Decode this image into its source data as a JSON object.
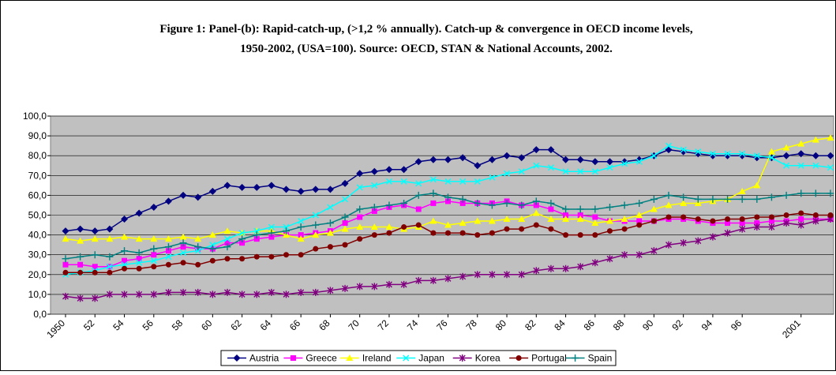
{
  "chart_data": {
    "type": "line",
    "title": [
      "Figure 1: Panel-(b): Rapid-catch-up, (>1,2 % annually). Catch-up & convergence in OECD income levels,",
      "1950-2002, (USA=100). Source: OECD, STAN & National Accounts, 2002."
    ],
    "categories": [
      "1950",
      null,
      "52",
      null,
      "54",
      null,
      "56",
      null,
      "58",
      null,
      "60",
      null,
      "62",
      null,
      "64",
      null,
      "66",
      null,
      "68",
      null,
      "70",
      null,
      "72",
      null,
      "74",
      null,
      "76",
      null,
      "78",
      null,
      "80",
      null,
      "82",
      null,
      "84",
      null,
      "86",
      null,
      "88",
      null,
      "90",
      null,
      "92",
      null,
      "94",
      null,
      "96",
      null,
      null,
      null,
      "2001",
      null,
      null
    ],
    "ylim": [
      0,
      100
    ],
    "yticks": [
      {
        "value": 0,
        "label": "0,0"
      },
      {
        "value": 10,
        "label": "10,0"
      },
      {
        "value": 20,
        "label": "20,0"
      },
      {
        "value": 30,
        "label": "30,0"
      },
      {
        "value": 40,
        "label": "40,0"
      },
      {
        "value": 50,
        "label": "50,0"
      },
      {
        "value": 60,
        "label": "60,0"
      },
      {
        "value": 70,
        "label": "70,0"
      },
      {
        "value": 80,
        "label": "80,0"
      },
      {
        "value": 90,
        "label": "90,0"
      },
      {
        "value": 100,
        "label": "100,0"
      }
    ],
    "grid": true,
    "legend": "bottom",
    "series": [
      {
        "name": "Austria",
        "color": "#000080",
        "marker": "diamond",
        "values": [
          42,
          43,
          42,
          43,
          48,
          51,
          54,
          57,
          60,
          59,
          62,
          65,
          64,
          64,
          65,
          63,
          62,
          63,
          63,
          66,
          71,
          72,
          73,
          73,
          77,
          78,
          78,
          79,
          75,
          78,
          80,
          79,
          83,
          83,
          78,
          78,
          77,
          77,
          77,
          78,
          80,
          83,
          82,
          81,
          80,
          80,
          80,
          79,
          79,
          80,
          81,
          80,
          80
        ]
      },
      {
        "name": "Greece",
        "color": "#ff00ff",
        "marker": "square",
        "values": [
          25,
          25,
          24,
          24,
          27,
          28,
          30,
          32,
          34,
          33,
          33,
          36,
          36,
          38,
          39,
          40,
          40,
          41,
          42,
          46,
          49,
          52,
          54,
          55,
          53,
          56,
          57,
          56,
          56,
          56,
          57,
          55,
          55,
          53,
          50,
          50,
          49,
          47,
          47,
          47,
          47,
          48,
          48,
          47,
          46,
          46,
          46,
          46,
          47,
          47,
          48,
          48,
          48
        ]
      },
      {
        "name": "Ireland",
        "color": "#ffff00",
        "marker": "triangle",
        "values": [
          38,
          37,
          38,
          38,
          39,
          38,
          38,
          38,
          39,
          38,
          40,
          42,
          41,
          42,
          42,
          40,
          38,
          40,
          41,
          43,
          44,
          44,
          44,
          43,
          44,
          47,
          45,
          46,
          47,
          47,
          48,
          48,
          51,
          48,
          48,
          48,
          46,
          47,
          48,
          50,
          53,
          55,
          56,
          56,
          57,
          58,
          62,
          65,
          82,
          84,
          86,
          88,
          89
        ]
      },
      {
        "name": "Japan",
        "color": "#00ffff",
        "marker": "x",
        "values": [
          20,
          21,
          22,
          24,
          25,
          26,
          27,
          29,
          31,
          32,
          35,
          38,
          41,
          42,
          44,
          44,
          47,
          50,
          54,
          58,
          64,
          65,
          67,
          67,
          66,
          68,
          67,
          67,
          67,
          69,
          71,
          72,
          75,
          74,
          72,
          72,
          72,
          74,
          76,
          77,
          80,
          85,
          83,
          82,
          81,
          81,
          81,
          80,
          79,
          75,
          75,
          75,
          74
        ]
      },
      {
        "name": "Korea",
        "color": "#800080",
        "marker": "star",
        "values": [
          9,
          8,
          8,
          10,
          10,
          10,
          10,
          11,
          11,
          11,
          10,
          11,
          10,
          10,
          11,
          10,
          11,
          11,
          12,
          13,
          14,
          14,
          15,
          15,
          17,
          17,
          18,
          19,
          20,
          20,
          20,
          20,
          22,
          23,
          23,
          24,
          26,
          28,
          30,
          30,
          32,
          35,
          36,
          37,
          39,
          41,
          43,
          44,
          44,
          46,
          45,
          47,
          48
        ]
      },
      {
        "name": "Portugal",
        "color": "#800000",
        "marker": "circle",
        "values": [
          21,
          21,
          21,
          21,
          23,
          23,
          24,
          25,
          26,
          25,
          27,
          28,
          28,
          29,
          29,
          30,
          30,
          33,
          34,
          35,
          38,
          40,
          41,
          44,
          45,
          41,
          41,
          41,
          40,
          41,
          43,
          43,
          45,
          43,
          40,
          40,
          40,
          42,
          43,
          45,
          47,
          49,
          49,
          48,
          47,
          48,
          48,
          49,
          49,
          50,
          51,
          50,
          50
        ]
      },
      {
        "name": "Spain",
        "color": "#008080",
        "marker": "plus",
        "values": [
          28,
          29,
          30,
          29,
          32,
          31,
          33,
          34,
          36,
          34,
          33,
          34,
          38,
          40,
          41,
          42,
          44,
          45,
          46,
          49,
          53,
          54,
          55,
          56,
          60,
          61,
          59,
          58,
          56,
          55,
          56,
          55,
          57,
          56,
          53,
          53,
          53,
          54,
          55,
          56,
          58,
          60,
          59,
          58,
          58,
          58,
          58,
          58,
          59,
          60,
          61,
          61,
          61
        ]
      }
    ]
  }
}
